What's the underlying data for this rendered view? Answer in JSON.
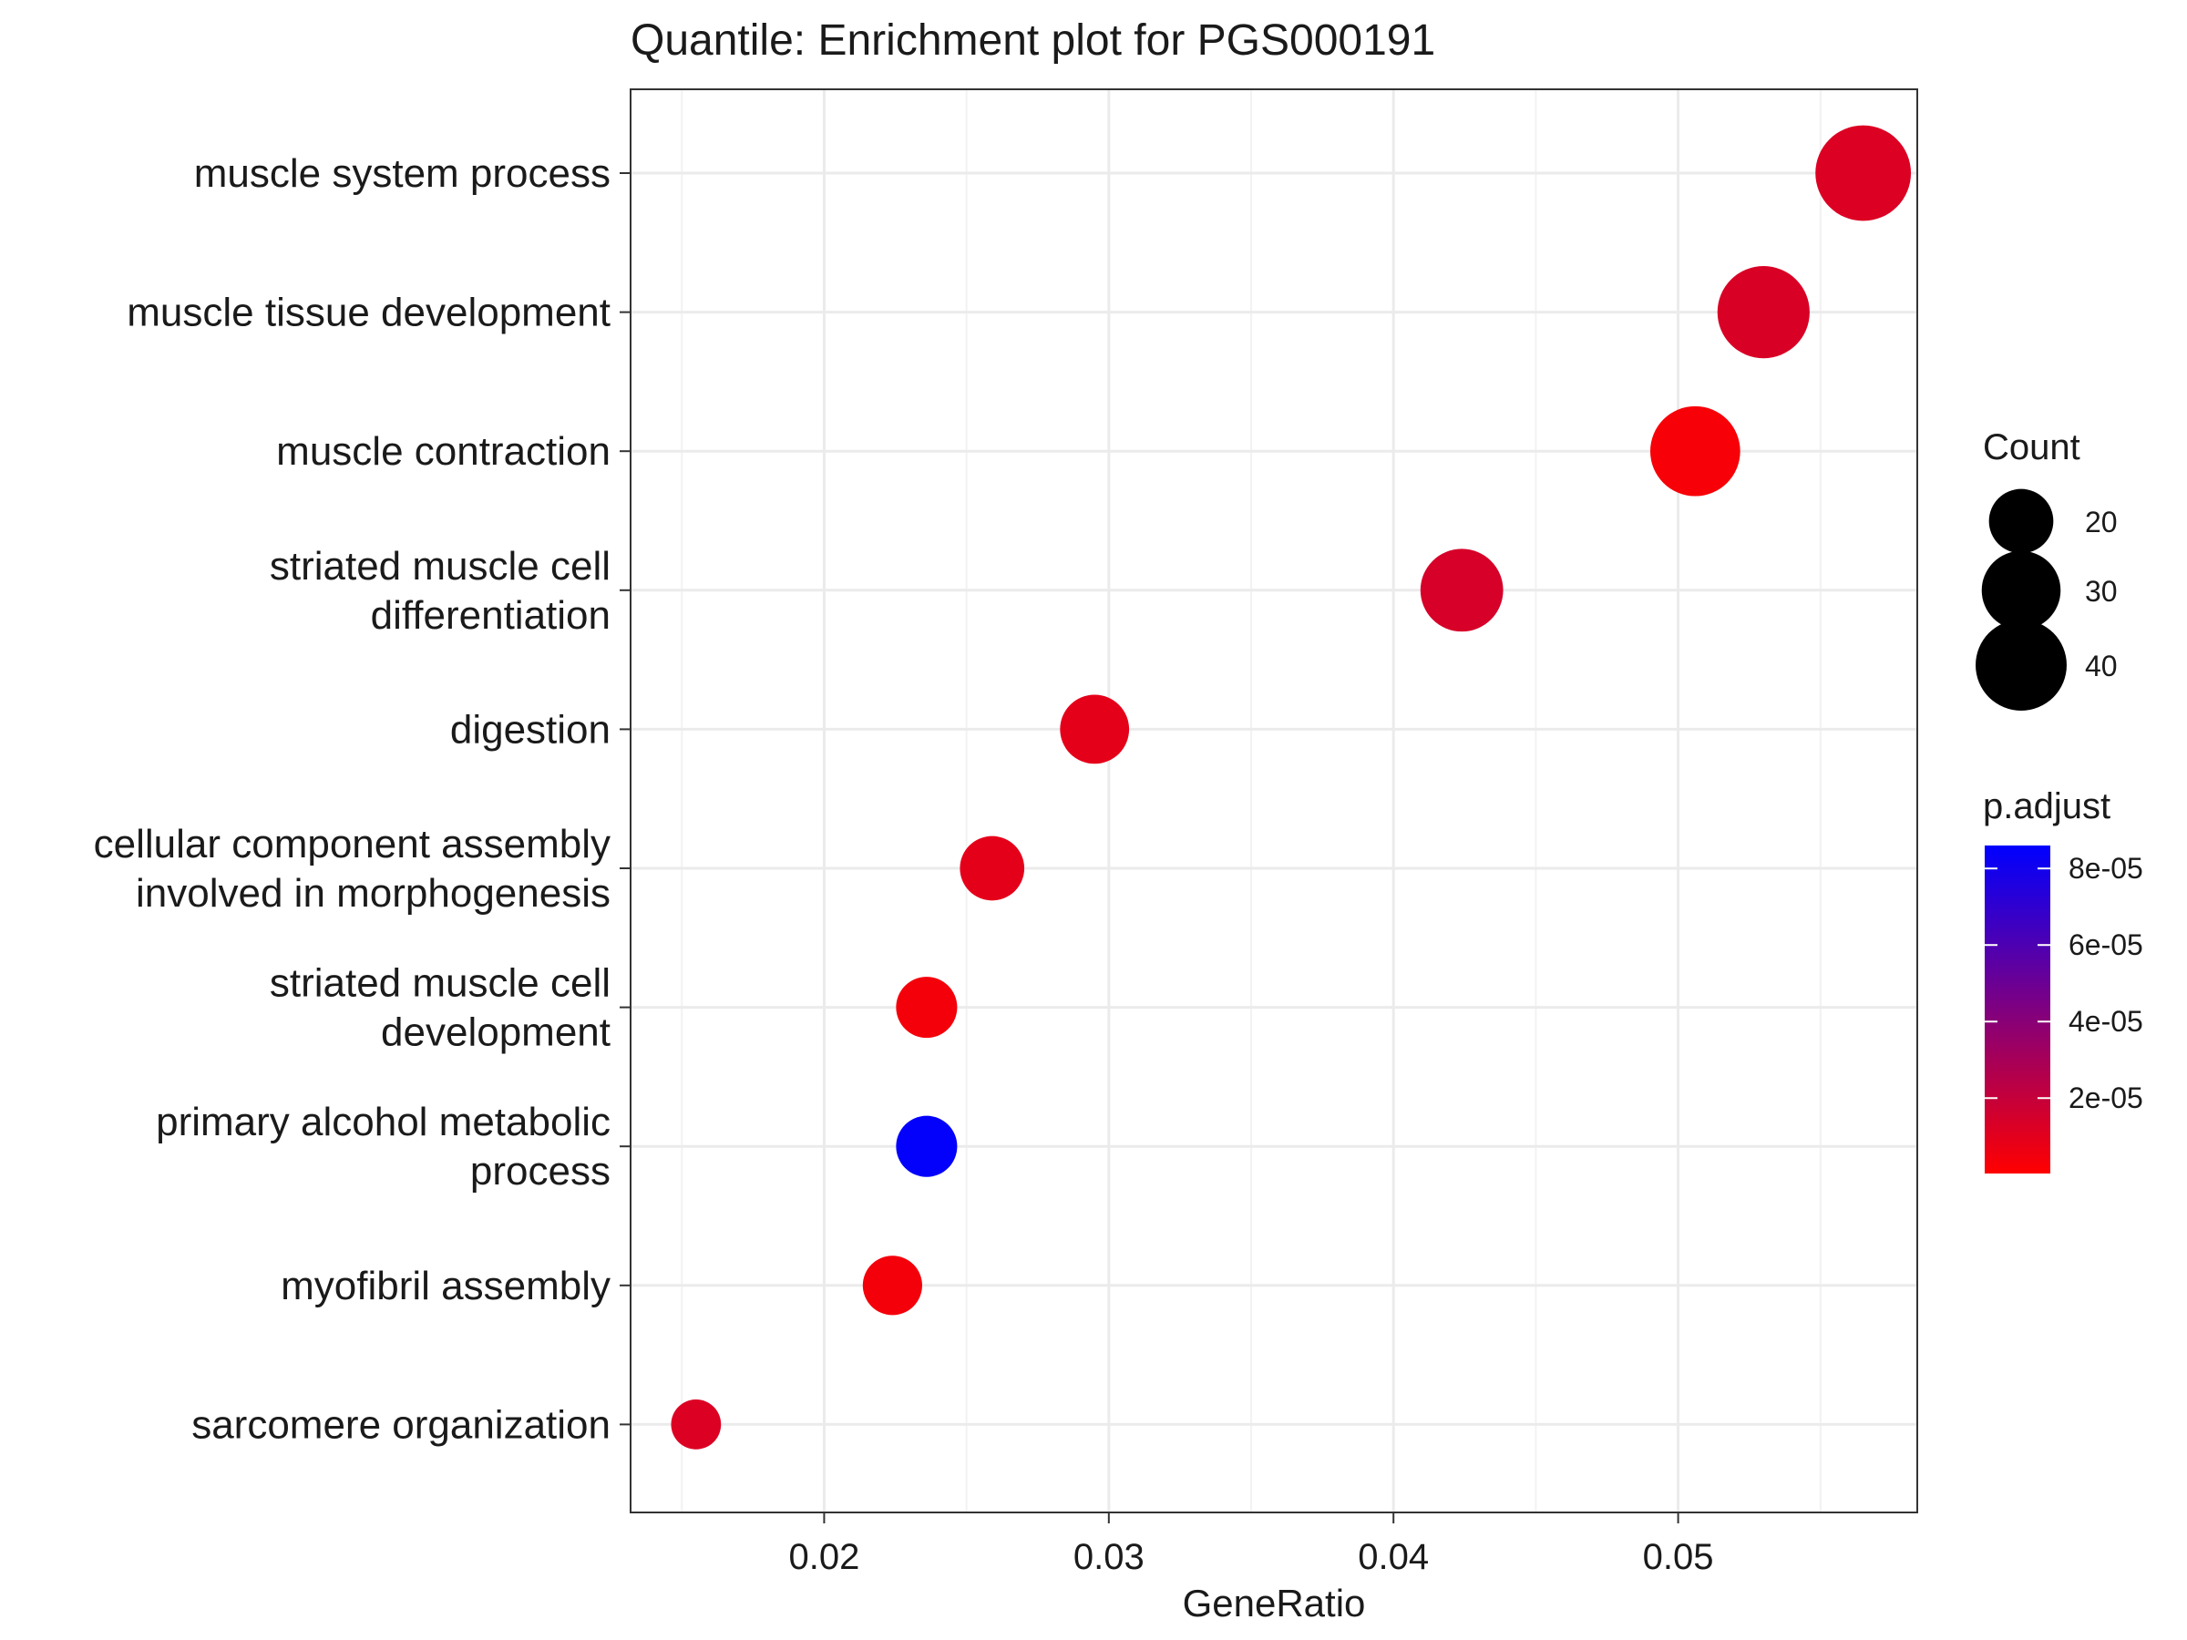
{
  "chart_data": {
    "type": "scatter",
    "title": "Quantile: Enrichment plot for PGS000191",
    "xlabel": "GeneRatio",
    "ylabel": "",
    "xlim": [
      0.0132,
      0.0584
    ],
    "x_ticks": [
      0.02,
      0.03,
      0.04,
      0.05
    ],
    "x_tick_labels": [
      "0.02",
      "0.03",
      "0.04",
      "0.05"
    ],
    "grid": true,
    "categories": [
      "muscle system process",
      "muscle tissue development",
      "muscle contraction",
      "striated muscle cell differentiation",
      "digestion",
      "cellular component assembly involved in morphogenesis",
      "striated muscle cell development",
      "primary alcohol metabolic process",
      "myofibril assembly",
      "sarcomere organization"
    ],
    "category_labels": [
      [
        "muscle system process"
      ],
      [
        "muscle tissue development"
      ],
      [
        "muscle contraction"
      ],
      [
        "striated muscle cell",
        "differentiation"
      ],
      [
        "digestion"
      ],
      [
        "cellular component assembly",
        "involved in morphogenesis"
      ],
      [
        "striated muscle cell",
        "development"
      ],
      [
        "primary alcohol metabolic",
        "process"
      ],
      [
        "myofibril assembly"
      ],
      [
        "sarcomere organization"
      ]
    ],
    "points": [
      {
        "term": "muscle system process",
        "gene_ratio": 0.0565,
        "count": 44,
        "p_adjust": 1.2e-05
      },
      {
        "term": "muscle tissue development",
        "gene_ratio": 0.053,
        "count": 41,
        "p_adjust": 1.3e-05
      },
      {
        "term": "muscle contraction",
        "gene_ratio": 0.0506,
        "count": 39,
        "p_adjust": 3e-06
      },
      {
        "term": "striated muscle cell differentiation",
        "gene_ratio": 0.0424,
        "count": 33,
        "p_adjust": 1.4e-05
      },
      {
        "term": "digestion",
        "gene_ratio": 0.0295,
        "count": 23,
        "p_adjust": 9e-06
      },
      {
        "term": "cellular component assembly involved in morphogenesis",
        "gene_ratio": 0.0259,
        "count": 20,
        "p_adjust": 9e-06
      },
      {
        "term": "striated muscle cell development",
        "gene_ratio": 0.0236,
        "count": 18,
        "p_adjust": 4e-06
      },
      {
        "term": "primary alcohol metabolic process",
        "gene_ratio": 0.0236,
        "count": 18,
        "p_adjust": 8.5e-05
      },
      {
        "term": "myofibril assembly",
        "gene_ratio": 0.0224,
        "count": 17,
        "p_adjust": 4e-06
      },
      {
        "term": "sarcomere organization",
        "gene_ratio": 0.0155,
        "count": 12,
        "p_adjust": 1.2e-05
      }
    ],
    "size_legend": {
      "title": "Count",
      "values": [
        20,
        30,
        40
      ],
      "labels": [
        "20",
        "30",
        "40"
      ]
    },
    "color_legend": {
      "title": "p.adjust",
      "low_color": "#ff0000",
      "high_color": "#0000ff",
      "range": [
        3e-07,
        8.6e-05
      ],
      "ticks": [
        2e-05,
        4e-05,
        6e-05,
        8e-05
      ],
      "tick_labels": [
        "2e-05",
        "4e-05",
        "6e-05",
        "8e-05"
      ]
    }
  }
}
